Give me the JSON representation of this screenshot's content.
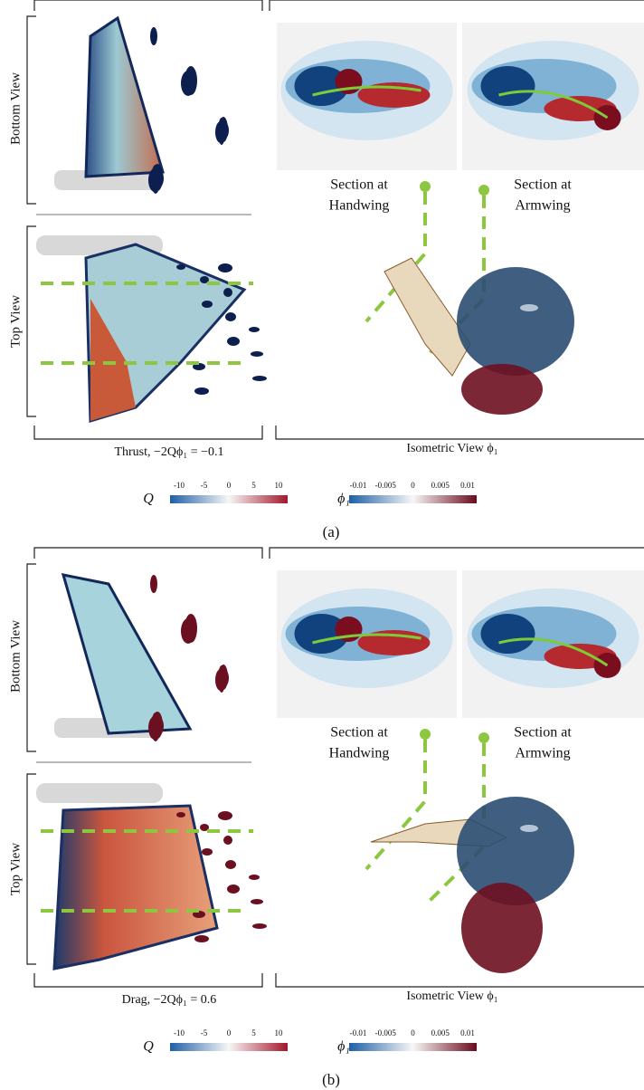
{
  "figure": {
    "panels": [
      {
        "label": "(a)",
        "bottom_view": "Bottom View",
        "top_view": "Top View",
        "sections": [
          [
            "Section at",
            "Handwing"
          ],
          [
            "Section at",
            "Armwing"
          ]
        ],
        "left_caption": "Thrust, −2Qϕ₁ = −0.1",
        "right_caption": "Isometric View ϕ₁",
        "colorbars": [
          {
            "symbol": "Q",
            "ticks": [
              "-10",
              "-5",
              "0",
              "5",
              "10"
            ]
          },
          {
            "symbol": "ϕ₁",
            "ticks": [
              "-0.01",
              "-0.005",
              "0",
              "0.005",
              "0.01"
            ]
          }
        ]
      },
      {
        "label": "(b)",
        "bottom_view": "Bottom View",
        "top_view": "Top View",
        "sections": [
          [
            "Section at",
            "Handwing"
          ],
          [
            "Section at",
            "Armwing"
          ]
        ],
        "left_caption": "Drag, −2Qϕ₁ = 0.6",
        "right_caption": "Isometric View ϕ₁",
        "colorbars": [
          {
            "symbol": "Q",
            "ticks": [
              "-10",
              "-5",
              "0",
              "5",
              "10"
            ]
          },
          {
            "symbol": "ϕ₁",
            "ticks": [
              "-0.01",
              "-0.005",
              "0",
              "0.005",
              "0.01"
            ]
          }
        ]
      }
    ]
  }
}
